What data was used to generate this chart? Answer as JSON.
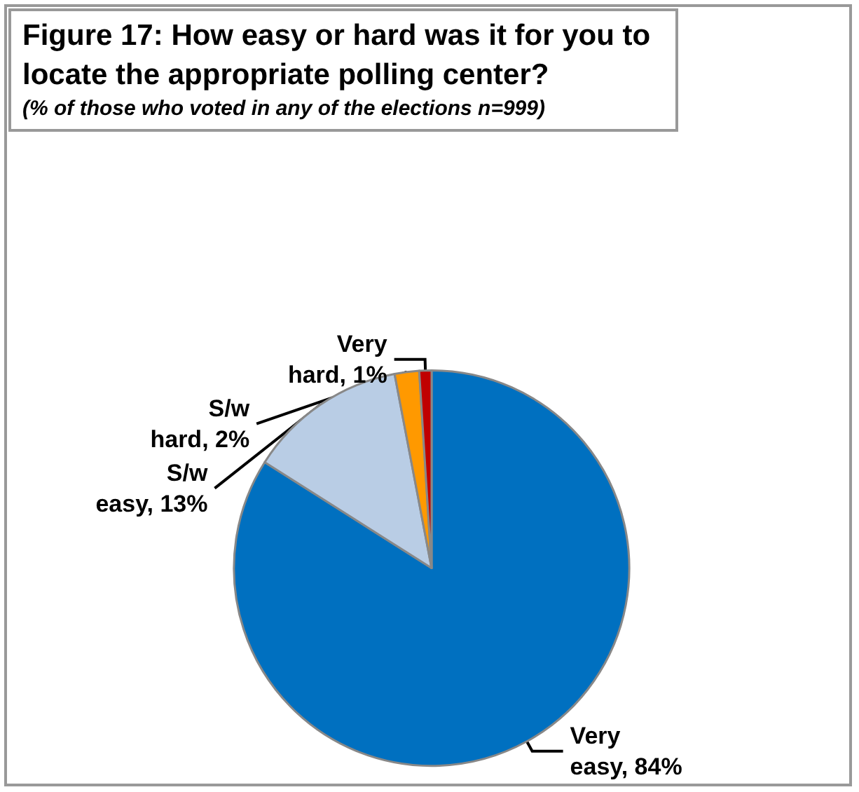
{
  "chart_data": {
    "type": "pie",
    "title": "Figure 17: How easy or hard was it for you to locate the appropriate polling center?",
    "subtitle": "(% of those who voted in any of the elections n=999)",
    "categories": [
      "Very easy",
      "S/w easy",
      "S/w hard",
      "Very hard"
    ],
    "values": [
      84,
      13,
      2,
      1
    ],
    "colors": [
      "#0070c0",
      "#b9cde5",
      "#ff9900",
      "#c00000"
    ],
    "value_labels": [
      "84%",
      "13%",
      "2%",
      "1%"
    ],
    "legend": false
  }
}
